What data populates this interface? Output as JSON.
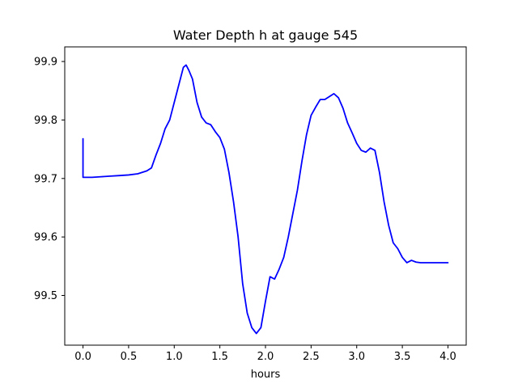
{
  "chart_data": {
    "type": "line",
    "title": "Water Depth h at gauge 545",
    "xlabel": "hours",
    "ylabel": "",
    "xlim": [
      -0.2,
      4.2
    ],
    "ylim": [
      99.415,
      99.925
    ],
    "xticks": [
      0.0,
      0.5,
      1.0,
      1.5,
      2.0,
      2.5,
      3.0,
      3.5,
      4.0
    ],
    "xtick_labels": [
      "0.0",
      "0.5",
      "1.0",
      "1.5",
      "2.0",
      "2.5",
      "3.0",
      "3.5",
      "4.0"
    ],
    "yticks": [
      99.5,
      99.6,
      99.7,
      99.8,
      99.9
    ],
    "ytick_labels": [
      "99.5",
      "99.6",
      "99.7",
      "99.8",
      "99.9"
    ],
    "grid": false,
    "legend": "none",
    "series": [
      {
        "color": "#0000ff",
        "x": [
          0.0,
          0.0,
          0.05,
          0.1,
          0.2,
          0.3,
          0.4,
          0.5,
          0.6,
          0.7,
          0.75,
          0.8,
          0.85,
          0.9,
          0.95,
          1.0,
          1.05,
          1.1,
          1.13,
          1.16,
          1.2,
          1.25,
          1.3,
          1.35,
          1.4,
          1.45,
          1.5,
          1.55,
          1.6,
          1.65,
          1.7,
          1.75,
          1.8,
          1.85,
          1.9,
          1.95,
          2.0,
          2.05,
          2.1,
          2.15,
          2.2,
          2.25,
          2.3,
          2.35,
          2.4,
          2.45,
          2.5,
          2.55,
          2.6,
          2.65,
          2.7,
          2.75,
          2.8,
          2.85,
          2.9,
          2.95,
          3.0,
          3.05,
          3.1,
          3.15,
          3.2,
          3.25,
          3.3,
          3.35,
          3.4,
          3.45,
          3.5,
          3.55,
          3.6,
          3.65,
          3.7,
          3.75,
          3.8,
          3.85,
          3.9,
          3.95,
          4.0
        ],
        "y": [
          99.768,
          99.702,
          99.702,
          99.702,
          99.703,
          99.704,
          99.705,
          99.706,
          99.708,
          99.713,
          99.718,
          99.74,
          99.76,
          99.785,
          99.8,
          99.83,
          99.86,
          99.89,
          99.894,
          99.885,
          99.87,
          99.83,
          99.805,
          99.795,
          99.792,
          99.78,
          99.77,
          99.75,
          99.71,
          99.66,
          99.6,
          99.52,
          99.47,
          99.445,
          99.435,
          99.445,
          99.49,
          99.532,
          99.528,
          99.545,
          99.565,
          99.6,
          99.64,
          99.68,
          99.73,
          99.775,
          99.808,
          99.822,
          99.835,
          99.835,
          99.84,
          99.845,
          99.838,
          99.82,
          99.795,
          99.778,
          99.76,
          99.748,
          99.745,
          99.752,
          99.748,
          99.71,
          99.66,
          99.62,
          99.59,
          99.58,
          99.565,
          99.556,
          99.56,
          99.557,
          99.556,
          99.556,
          99.556,
          99.556,
          99.556,
          99.556,
          99.556
        ]
      }
    ]
  }
}
